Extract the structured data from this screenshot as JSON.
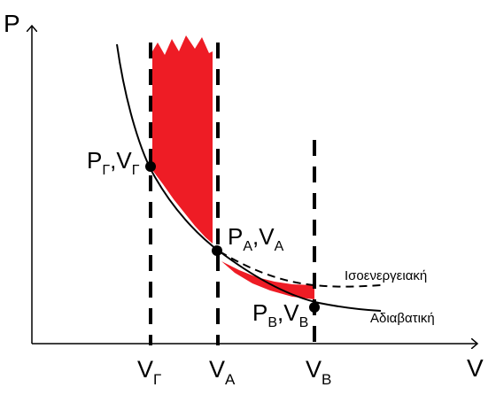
{
  "axes": {
    "y_label": "P",
    "x_label": "V"
  },
  "ticks": {
    "v_gamma": {
      "main": "V",
      "sub": "Γ"
    },
    "v_a": {
      "main": "V",
      "sub": "A"
    },
    "v_b": {
      "main": "V",
      "sub": "B"
    }
  },
  "points": {
    "gamma": {
      "p": "P",
      "p_sub": "Γ",
      "sep": ",",
      "v": "V",
      "v_sub": "Γ"
    },
    "a": {
      "p": "P",
      "p_sub": "A",
      "sep": ",",
      "v": "V",
      "v_sub": "A"
    },
    "b": {
      "p": "P",
      "p_sub": "B",
      "sep": ",",
      "v": "V",
      "v_sub": "B"
    }
  },
  "curves": {
    "isoenergy_label": "Ισοενεργειακή",
    "adiabatic_label": "Αδιαβατική"
  },
  "colors": {
    "shade": "#ee1c25",
    "ink": "#000000"
  }
}
